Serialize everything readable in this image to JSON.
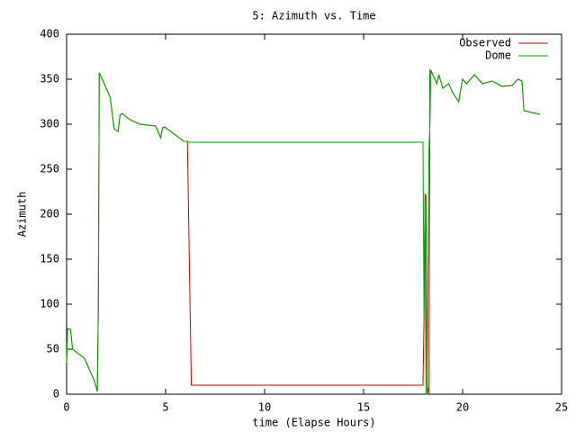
{
  "chart_data": {
    "type": "line",
    "title": "5: Azimuth vs. Time",
    "x_label": "time (Elapse Hours)",
    "y_label": "Azimuth",
    "x": [
      0,
      0.05,
      0.2,
      0.3,
      0.6,
      0.9,
      1.1,
      1.4,
      1.55,
      1.6,
      1.65,
      1.8,
      2.0,
      2.2,
      2.4,
      2.6,
      2.7,
      2.8,
      3.2,
      3.7,
      4.5,
      4.75,
      4.85,
      4.95,
      5.8,
      5.9,
      6.1,
      6.15,
      6.3,
      18.0,
      18.05,
      18.1,
      18.15,
      18.2,
      18.3,
      18.35,
      18.4,
      18.5,
      18.7,
      18.8,
      19.0,
      19.3,
      19.5,
      19.8,
      20.0,
      20.2,
      20.6,
      21.0,
      21.5,
      22.0,
      22.5,
      22.8,
      23.0,
      23.1,
      23.5,
      23.9
    ],
    "series": [
      {
        "name": "Observed",
        "color": "#cc0000",
        "values": [
          35,
          73,
          72,
          50,
          45,
          40,
          30,
          15,
          3,
          90,
          357,
          350,
          340,
          330,
          295,
          292,
          310,
          312,
          305,
          300,
          298,
          285,
          296,
          297,
          283,
          281,
          281,
          215,
          10,
          10,
          80,
          222,
          220,
          10,
          0,
          360,
          358,
          355,
          345,
          355,
          340,
          345,
          335,
          325,
          350,
          345,
          355,
          345,
          348,
          342,
          343,
          350,
          348,
          315,
          313,
          311
        ]
      },
      {
        "name": "Dome",
        "color": "#00a000",
        "values": [
          35,
          73,
          72,
          50,
          45,
          40,
          30,
          15,
          3,
          90,
          357,
          350,
          340,
          330,
          295,
          292,
          310,
          312,
          305,
          300,
          298,
          285,
          296,
          297,
          283,
          281,
          281,
          280,
          280,
          280,
          90,
          215,
          0,
          0,
          270,
          300,
          360,
          355,
          345,
          355,
          340,
          345,
          335,
          325,
          350,
          345,
          355,
          345,
          348,
          342,
          343,
          350,
          348,
          315,
          313,
          311
        ]
      }
    ],
    "xlim": [
      0,
      25
    ],
    "xticks": [
      0,
      5,
      10,
      15,
      20,
      25
    ],
    "ylim": [
      0,
      400
    ],
    "yticks": [
      0,
      50,
      100,
      150,
      200,
      250,
      300,
      350,
      400
    ],
    "legend": "top-right"
  }
}
